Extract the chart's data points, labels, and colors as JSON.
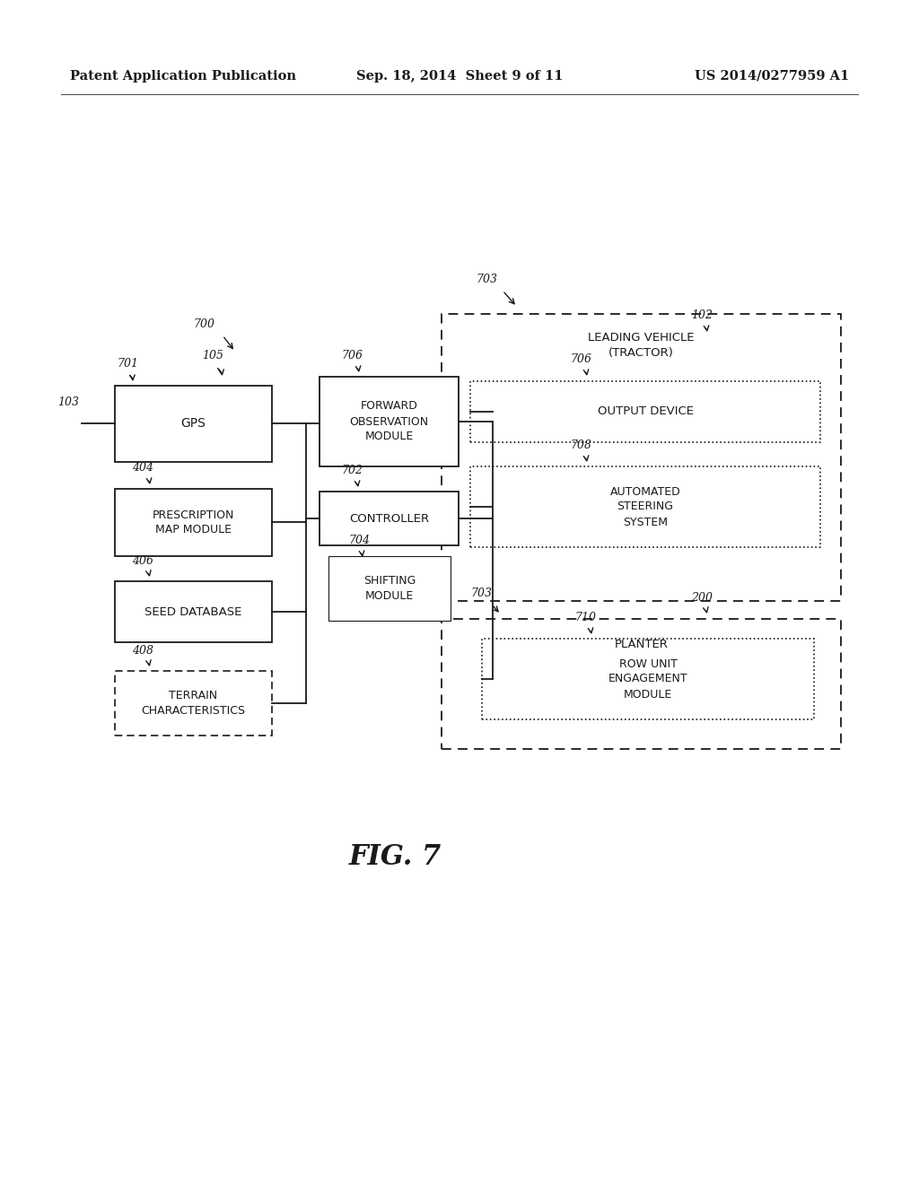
{
  "header_left": "Patent Application Publication",
  "header_center": "Sep. 18, 2014  Sheet 9 of 11",
  "header_right": "US 2014/0277959 A1",
  "figure_label": "FIG. 7",
  "bg_color": "#ffffff"
}
